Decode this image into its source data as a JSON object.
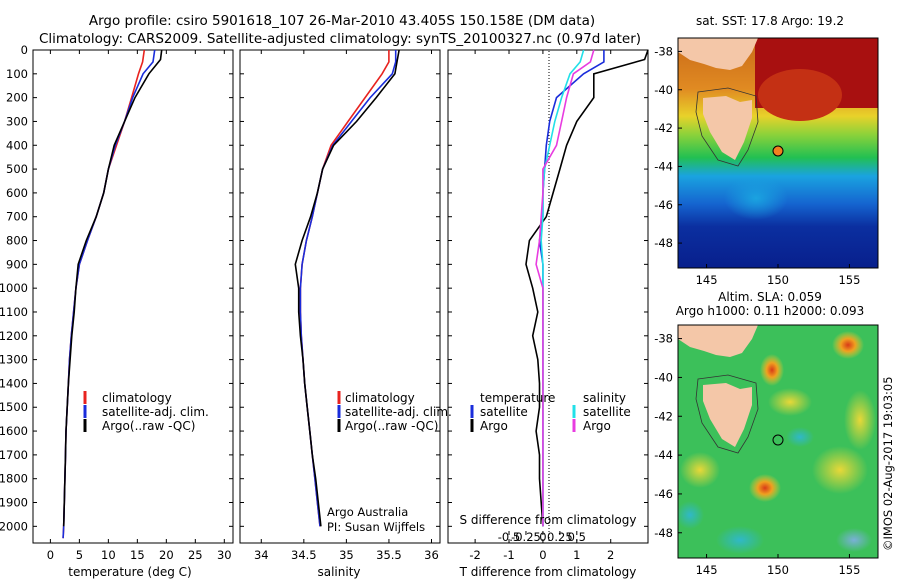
{
  "title_line1": "Argo profile: csiro 5901618_107 26-Mar-2010 43.405S 150.158E (DM data)",
  "title_line2": "Climatology: CARS2009. Satellite-adjusted climatology: synTS_20100327.nc (0.97d later)",
  "colors": {
    "climatology": "#e8231f",
    "satellite": "#1a2ddb",
    "argo": "#000000",
    "sal_satellite": "#22e0e8",
    "sal_argo": "#e83ce0"
  },
  "chart_data": [
    {
      "type": "line",
      "xlabel": "temperature (deg C)",
      "ylabel": "",
      "xlim": [
        -3,
        31.5
      ],
      "ylim": [
        2070,
        0
      ],
      "xticks": [
        0,
        5,
        10,
        15,
        20,
        25,
        30
      ],
      "yticks": [
        0,
        100,
        200,
        300,
        400,
        500,
        600,
        700,
        800,
        900,
        1000,
        1100,
        1200,
        1300,
        1400,
        1500,
        1600,
        1700,
        1800,
        1900,
        2000
      ],
      "legend": [
        "climatology",
        "satellite-adj. clim.",
        "Argo(..raw -QC)"
      ],
      "series": [
        {
          "name": "climatology",
          "color": "#e8231f",
          "x": [
            16.2,
            15.9,
            15.2,
            14.0,
            12.8,
            11.4,
            10.0,
            9.2,
            7.9,
            6.4,
            5.0,
            4.4,
            4.0,
            3.6,
            3.3,
            3.1,
            2.9,
            2.7,
            2.6,
            2.5,
            2.4,
            2.3,
            2.2
          ],
          "y": [
            0,
            50,
            100,
            200,
            300,
            400,
            500,
            600,
            700,
            800,
            900,
            1000,
            1100,
            1200,
            1300,
            1400,
            1500,
            1600,
            1700,
            1800,
            1900,
            2000,
            2050
          ]
        },
        {
          "name": "satellite-adj. clim.",
          "color": "#1a2ddb",
          "x": [
            18.0,
            17.7,
            16.0,
            14.2,
            12.8,
            11.2,
            10.0,
            9.2,
            7.9,
            6.4,
            5.0,
            4.4,
            4.0,
            3.6,
            3.3,
            3.1,
            2.9,
            2.7,
            2.6,
            2.5,
            2.4,
            2.3,
            2.2
          ],
          "y": [
            0,
            50,
            100,
            200,
            300,
            400,
            500,
            600,
            700,
            800,
            900,
            1000,
            1100,
            1200,
            1300,
            1400,
            1500,
            1600,
            1700,
            1800,
            1900,
            2000,
            2050
          ]
        },
        {
          "name": "Argo(..raw -QC)",
          "color": "#000000",
          "x": [
            19.2,
            19.0,
            17.0,
            14.6,
            12.8,
            11.0,
            10.0,
            9.2,
            7.9,
            6.2,
            4.8,
            4.4,
            4.1,
            3.7,
            3.4,
            3.1,
            2.9,
            2.7,
            2.6,
            2.5,
            2.4,
            2.3
          ],
          "y": [
            0,
            40,
            100,
            200,
            300,
            400,
            500,
            600,
            700,
            800,
            900,
            1000,
            1100,
            1200,
            1300,
            1400,
            1500,
            1600,
            1700,
            1800,
            1900,
            2000
          ]
        }
      ]
    },
    {
      "type": "line",
      "xlabel": "salinity",
      "ylabel": "",
      "xlim": [
        33.75,
        36.1
      ],
      "ylim": [
        2070,
        0
      ],
      "xticks": [
        34,
        34.5,
        35,
        35.5,
        36
      ],
      "legend": [
        "climatology",
        "satellite-adj. clim.",
        "Argo(..raw -QC)"
      ],
      "annotation": [
        "Argo Australia",
        "PI: Susan Wijffels"
      ],
      "series": [
        {
          "name": "climatology",
          "color": "#e8231f",
          "x": [
            35.5,
            35.5,
            35.42,
            35.22,
            35.02,
            34.82,
            34.72,
            34.66,
            34.6,
            34.53,
            34.48,
            34.46,
            34.46,
            34.47,
            34.49,
            34.51,
            34.54,
            34.57,
            34.6,
            34.63,
            34.66,
            34.69
          ],
          "y": [
            0,
            50,
            100,
            200,
            300,
            400,
            500,
            600,
            700,
            800,
            900,
            1000,
            1100,
            1200,
            1300,
            1400,
            1500,
            1600,
            1700,
            1800,
            1900,
            2000
          ]
        },
        {
          "name": "satellite-adj. clim.",
          "color": "#1a2ddb",
          "x": [
            35.58,
            35.58,
            35.54,
            35.28,
            35.06,
            34.84,
            34.72,
            34.66,
            34.6,
            34.53,
            34.48,
            34.46,
            34.46,
            34.47,
            34.49,
            34.51,
            34.54,
            34.57,
            34.6,
            34.63,
            34.66,
            34.69
          ],
          "y": [
            0,
            50,
            100,
            200,
            300,
            400,
            500,
            600,
            700,
            800,
            900,
            1000,
            1100,
            1200,
            1300,
            1400,
            1500,
            1600,
            1700,
            1800,
            1900,
            2000
          ]
        },
        {
          "name": "Argo(..raw -QC)",
          "color": "#000000",
          "x": [
            35.62,
            35.6,
            35.57,
            35.35,
            35.12,
            34.85,
            34.72,
            34.66,
            34.58,
            34.48,
            34.4,
            34.44,
            34.44,
            34.46,
            34.49,
            34.51,
            34.54,
            34.57,
            34.6,
            34.64,
            34.67,
            34.7
          ],
          "y": [
            0,
            40,
            100,
            200,
            300,
            400,
            500,
            600,
            700,
            800,
            900,
            1000,
            1100,
            1200,
            1300,
            1400,
            1500,
            1600,
            1700,
            1800,
            1900,
            2000
          ]
        }
      ]
    },
    {
      "type": "line",
      "xlabel": "T difference from climatology",
      "ylabel": "",
      "top_axis_label": "S difference from climatology",
      "xlim": [
        -2.8,
        3.1
      ],
      "ylim": [
        2070,
        0
      ],
      "xticks": [
        -2,
        -1,
        0,
        1,
        2
      ],
      "xticklabels": [
        "-2",
        "-1",
        "0",
        "1",
        "2"
      ],
      "sticks": [
        -0.5,
        -0.25,
        0,
        0.25,
        0.5
      ],
      "sticklabels": [
        "-0.5",
        "-0.25",
        "0",
        "0.25",
        "0.5"
      ],
      "legend_left_title": "temperature",
      "legend_right_title": "salinity",
      "legend_left": [
        "satellite",
        "Argo"
      ],
      "legend_right": [
        "satellite",
        "Argo"
      ],
      "series": [
        {
          "name": "T satellite",
          "color": "#1a2ddb",
          "x": [
            1.8,
            1.8,
            1.2,
            0.4,
            0.2,
            0.1,
            0.05,
            0.0,
            0.0,
            -0.1,
            0.0,
            0.0,
            0.0,
            0.0,
            0.0,
            0.0,
            0.0,
            0.0,
            0.0,
            0.0,
            0.0
          ],
          "y": [
            0,
            50,
            100,
            200,
            300,
            400,
            500,
            600,
            700,
            800,
            900,
            1000,
            1100,
            1200,
            1300,
            1400,
            1500,
            1600,
            1700,
            1800,
            2000
          ]
        },
        {
          "name": "T Argo",
          "color": "#000000",
          "x": [
            3.1,
            3.0,
            1.5,
            1.5,
            1.0,
            0.7,
            0.5,
            0.3,
            0.1,
            -0.4,
            -0.5,
            -0.3,
            -0.15,
            -0.3,
            -0.15,
            -0.1,
            -0.1,
            -0.2,
            -0.1,
            -0.1,
            -0.05,
            0.0
          ],
          "y": [
            0,
            40,
            100,
            200,
            300,
            400,
            500,
            600,
            700,
            800,
            900,
            1000,
            1100,
            1200,
            1300,
            1400,
            1500,
            1600,
            1700,
            1800,
            1900,
            2000
          ]
        },
        {
          "name": "S satellite",
          "color": "#22e0e8",
          "x": [
            1.2,
            1.1,
            0.8,
            0.55,
            0.35,
            0.2,
            0.05,
            0.0,
            0.0,
            -0.05,
            0.0,
            0.0,
            0.0,
            0.0,
            0.0,
            0.0,
            0.0,
            0.0,
            0.0,
            0.0
          ],
          "y": [
            0,
            50,
            100,
            200,
            300,
            400,
            500,
            600,
            700,
            800,
            900,
            1000,
            1100,
            1200,
            1300,
            1400,
            1500,
            1600,
            1800,
            2000
          ]
        },
        {
          "name": "S Argo",
          "color": "#e83ce0",
          "x": [
            1.5,
            1.4,
            0.9,
            0.7,
            0.55,
            0.4,
            0.0,
            0.0,
            -0.05,
            -0.1,
            -0.2,
            0.0,
            0.0,
            0.0,
            0.0,
            0.0,
            0.0,
            0.0,
            0.0,
            0.0
          ],
          "y": [
            0,
            50,
            100,
            200,
            300,
            400,
            500,
            600,
            700,
            800,
            900,
            1000,
            1100,
            1200,
            1300,
            1400,
            1500,
            1600,
            1800,
            2000
          ]
        }
      ]
    },
    {
      "type": "heatmap",
      "title": "sat. SST: 17.8 Argo: 19.2",
      "xticks": [
        145,
        150,
        155
      ],
      "yticks": [
        -38,
        -40,
        -42,
        -44,
        -46,
        -48
      ],
      "xlim": [
        143,
        157
      ],
      "ylim": [
        -49.3,
        -37.3
      ],
      "argo_position": [
        150.158,
        -43.405
      ]
    },
    {
      "type": "heatmap",
      "title_line1": "Altim. SLA: 0.059",
      "title_line2": "Argo h1000: 0.11 h2000: 0.093",
      "xticks": [
        145,
        150,
        155
      ],
      "yticks": [
        -38,
        -40,
        -42,
        -44,
        -46,
        -48
      ],
      "xlim": [
        143,
        157
      ],
      "ylim": [
        -49.3,
        -37.3
      ],
      "argo_position": [
        150.158,
        -43.405
      ]
    }
  ],
  "credit": "©IMOS 02-Aug-2017 19:03:05"
}
